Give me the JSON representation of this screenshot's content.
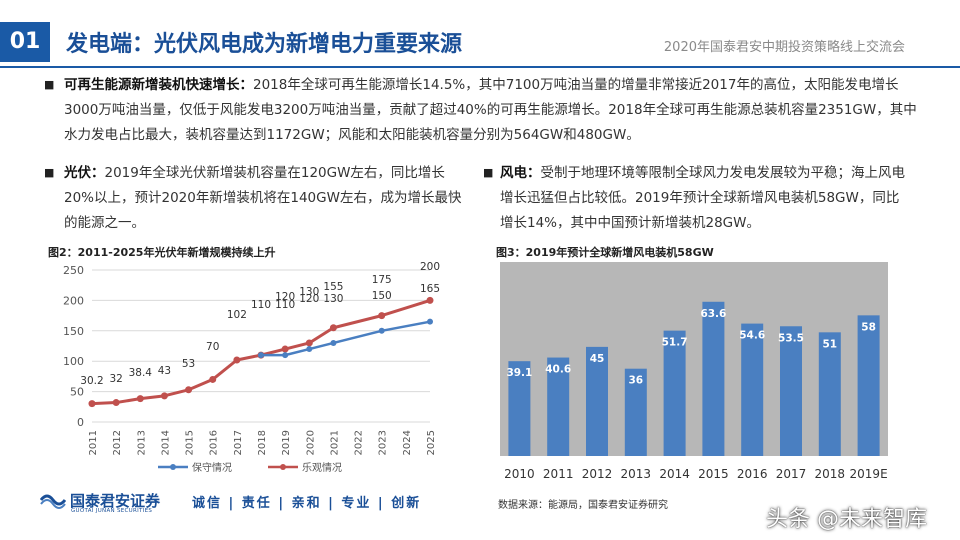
{
  "header": {
    "section_number": "01",
    "title": "发电端：光伏风电成为新增电力重要来源",
    "event": "2020年国泰君安中期投资策略线上交流会"
  },
  "paragraphs": {
    "p1": {
      "bold": "可再生能源新增装机快速增长：",
      "text": "2018年全球可再生能源增长14.5%，其中7100万吨油当量的增量非常接近2017年的高位，太阳能发电增长3000万吨油当量，仅低于风能发电3200万吨油当量，贡献了超过40%的可再生能源增长。2018年全球可再生能源总装机容量2351GW，其中水力发电占比最大，装机容量达到1172GW；风能和太阳能装机容量分别为564GW和480GW。"
    },
    "p2": {
      "bold": "光伏：",
      "text": "2019年全球光伏新增装机容量在120GW左右，同比增长20%以上，预计2020年新增装机将在140GW左右，成为增长最快的能源之一。"
    },
    "p3": {
      "bold": "风电：",
      "text": "受制于地理环境等限制全球风力发电发展较为平稳；海上风电增长迅猛但占比较低。2019年预计全球新增风电装机58GW，同比增长14%，其中中国预计新增装机28GW。"
    }
  },
  "bullet_glyph": "■",
  "figures": {
    "fig2_caption": "图2：2011-2025年光伏年新增规模持续上升",
    "fig3_caption": "图3：2019年预计全球新增风电装机58GW",
    "source": "数据来源：能源局，国泰君安证券研究"
  },
  "footer": {
    "logo_cn": "国泰君安证券",
    "logo_en": "GUOTAI JUNAN SECURITIES",
    "slogan": "诚信 | 责任 | 亲和 | 专业 | 创新",
    "watermark": "头条 @未来智库"
  },
  "colors": {
    "brand_blue": "#1a5aa6",
    "conservative_line": "#4a7fc1",
    "optimistic_line": "#c0504d",
    "wind_bar": "#4a7fc1",
    "wind_bg": "#b7b7b7"
  },
  "chart_data": [
    {
      "type": "line",
      "x": [
        "2011",
        "2012",
        "2013",
        "2014",
        "2015",
        "2016",
        "2017",
        "2018",
        "2019",
        "2020",
        "2021",
        "2022",
        "2023",
        "2024",
        "2025"
      ],
      "series": [
        {
          "name": "保守情况",
          "values": [
            null,
            null,
            null,
            null,
            null,
            null,
            null,
            110,
            110,
            120,
            130,
            null,
            150,
            null,
            165
          ]
        },
        {
          "name": "乐观情况",
          "values": [
            30.2,
            32,
            38.4,
            43,
            53,
            70,
            102,
            110,
            120,
            130,
            155,
            null,
            175,
            null,
            200
          ]
        }
      ],
      "data_labels": [
        {
          "x": "2011",
          "text": "30.2"
        },
        {
          "x": "2012",
          "text": "32"
        },
        {
          "x": "2013",
          "text": "38.4"
        },
        {
          "x": "2014",
          "text": "43"
        },
        {
          "x": "2015",
          "text": "53"
        },
        {
          "x": "2016",
          "text": "70"
        },
        {
          "x": "2017",
          "text": "102"
        },
        {
          "x": "2018",
          "text": "110"
        },
        {
          "x": "2019",
          "text": "110"
        },
        {
          "x": "2020",
          "text": "120"
        },
        {
          "x": "2019",
          "text": "120"
        },
        {
          "x": "2020",
          "text": "130"
        },
        {
          "x": "2021",
          "text": "155"
        },
        {
          "x": "2021",
          "text": "130"
        },
        {
          "x": "2023",
          "text": "175"
        },
        {
          "x": "2023",
          "text": "150"
        },
        {
          "x": "2025",
          "text": "200"
        },
        {
          "x": "2025",
          "text": "165"
        }
      ],
      "yticks": [
        0,
        50,
        100,
        150,
        200,
        250
      ],
      "ylim": [
        0,
        250
      ],
      "grid": true,
      "legend": "bottom"
    },
    {
      "type": "bar",
      "categories": [
        "2010",
        "2011",
        "2012",
        "2013",
        "2014",
        "2015",
        "2016",
        "2017",
        "2018",
        "2019E"
      ],
      "values": [
        39.1,
        40.6,
        45,
        36,
        51.7,
        63.6,
        54.6,
        53.5,
        51,
        58
      ],
      "value_labels": [
        "39.1",
        "40.6",
        "45",
        "36",
        "51.7",
        "63.6",
        "54.6",
        "53.5",
        "51",
        "58"
      ],
      "ylim": [
        0,
        80
      ],
      "grid": false,
      "legend": "none"
    }
  ]
}
